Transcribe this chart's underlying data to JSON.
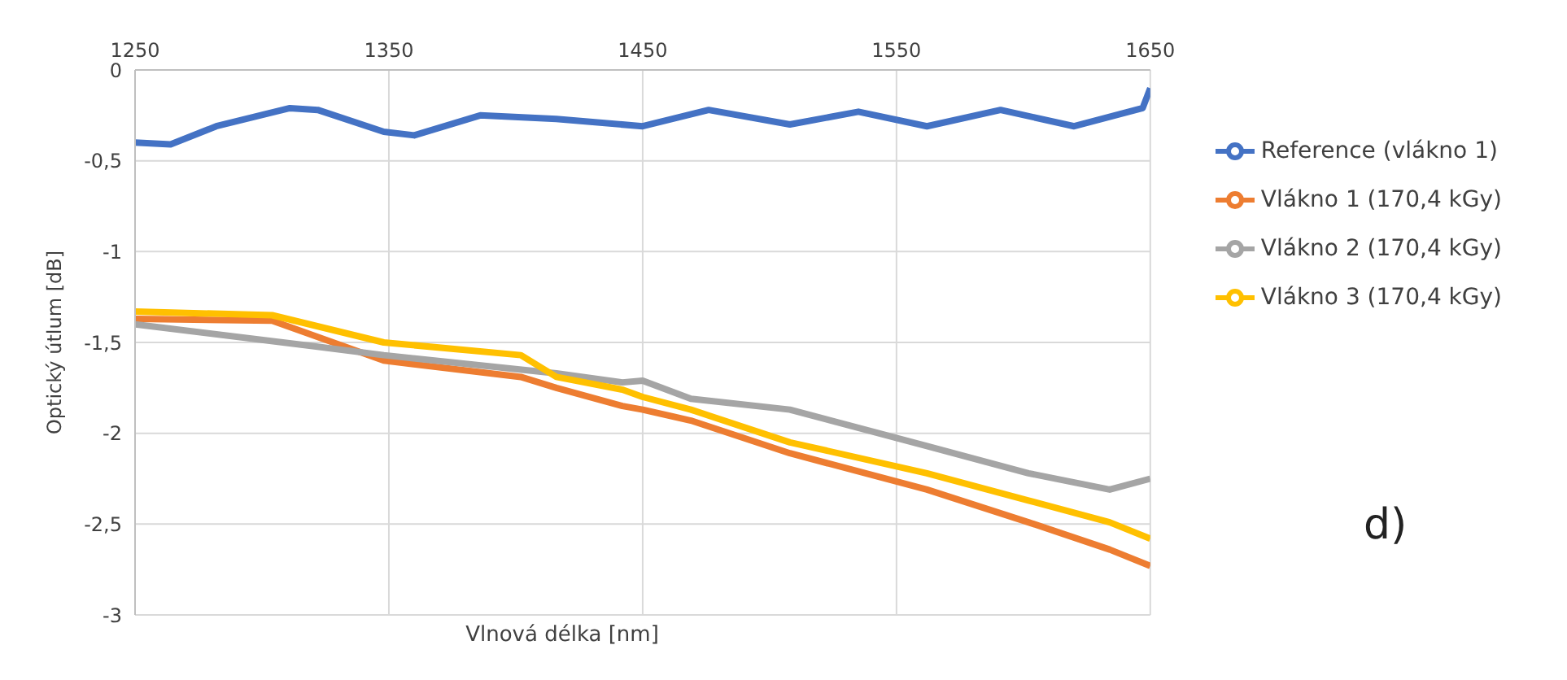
{
  "chart_data": {
    "type": "line",
    "xlabel": "Vlnová délka [nm]",
    "ylabel": "Optický útlum [dB]",
    "xlim": [
      1250,
      1650
    ],
    "xticks": [
      1250,
      1350,
      1450,
      1550,
      1650
    ],
    "ylim": [
      -3,
      0
    ],
    "yticks": [
      {
        "value": -3,
        "label": "-3"
      },
      {
        "value": -2.5,
        "label": "-2,5"
      },
      {
        "value": -2,
        "label": "-2"
      },
      {
        "value": -1.5,
        "label": "-1,5"
      },
      {
        "value": -1,
        "label": "-1"
      },
      {
        "value": -0.5,
        "label": "-0,5"
      },
      {
        "value": 0,
        "label": "0"
      }
    ],
    "grid": true,
    "legend": "right",
    "line_style": "solid",
    "marker": "none",
    "annotations": [
      "d)"
    ],
    "series": [
      {
        "name": "Reference (vlákno 1)",
        "color": "#4472c4",
        "x": [
          1250,
          1264,
          1282,
          1311,
          1322,
          1348,
          1360,
          1386,
          1416,
          1450,
          1476,
          1508,
          1535,
          1562,
          1591,
          1620,
          1647,
          1650
        ],
        "values": [
          -0.4,
          -0.41,
          -0.31,
          -0.21,
          -0.22,
          -0.34,
          -0.36,
          -0.25,
          -0.27,
          -0.31,
          -0.22,
          -0.3,
          -0.23,
          -0.31,
          -0.22,
          -0.31,
          -0.21,
          -0.1
        ]
      },
      {
        "name": "Vlákno 1 (170,4 kGy)",
        "color": "#ed7d31",
        "x": [
          1250,
          1304,
          1348,
          1402,
          1416,
          1442,
          1450,
          1469,
          1508,
          1562,
          1602,
          1634,
          1650
        ],
        "values": [
          -1.37,
          -1.38,
          -1.6,
          -1.69,
          -1.75,
          -1.85,
          -1.87,
          -1.93,
          -2.11,
          -2.31,
          -2.49,
          -2.64,
          -2.73
        ]
      },
      {
        "name": "Vlákno 2 (170,4 kGy)",
        "color": "#a5a5a5",
        "x": [
          1250,
          1320,
          1348,
          1416,
          1442,
          1450,
          1469,
          1508,
          1562,
          1602,
          1634,
          1650
        ],
        "values": [
          -1.4,
          -1.52,
          -1.57,
          -1.67,
          -1.72,
          -1.71,
          -1.81,
          -1.87,
          -2.07,
          -2.22,
          -2.31,
          -2.25
        ]
      },
      {
        "name": "Vlákno 3 (170,4 kGy)",
        "color": "#ffc000",
        "x": [
          1250,
          1304,
          1348,
          1402,
          1416,
          1442,
          1450,
          1469,
          1508,
          1562,
          1602,
          1634,
          1650
        ],
        "values": [
          -1.33,
          -1.35,
          -1.5,
          -1.57,
          -1.69,
          -1.76,
          -1.8,
          -1.87,
          -2.05,
          -2.22,
          -2.37,
          -2.49,
          -2.58
        ]
      }
    ]
  }
}
